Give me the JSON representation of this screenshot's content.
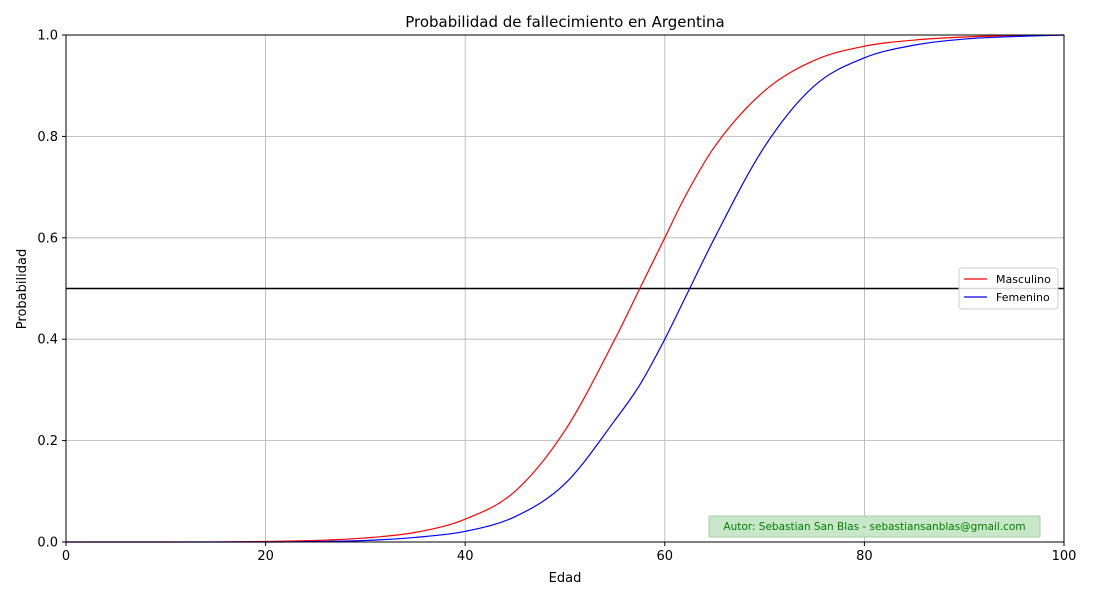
{
  "chart_data": {
    "type": "line",
    "title": "Probabilidad de fallecimiento en Argentina",
    "xlabel": "Edad",
    "ylabel": "Probabilidad",
    "xlim": [
      0,
      100
    ],
    "ylim": [
      0,
      1.0
    ],
    "xticks": [
      0,
      20,
      40,
      60,
      80,
      100
    ],
    "yticks": [
      0.0,
      0.2,
      0.4,
      0.6,
      0.8,
      1.0
    ],
    "xtick_labels": [
      "0",
      "20",
      "40",
      "60",
      "80",
      "100"
    ],
    "ytick_labels": [
      "0.0",
      "0.2",
      "0.4",
      "0.6",
      "0.8",
      "1.0"
    ],
    "grid": true,
    "legend_position": "center-right",
    "x": [
      0,
      10,
      20,
      25,
      30,
      35,
      40,
      45,
      50,
      55,
      57.5,
      60,
      62,
      65,
      70,
      75,
      80,
      85,
      90,
      95,
      100
    ],
    "series": [
      {
        "name": "Masculino",
        "color": "#ff0000",
        "values": [
          0.0,
          0.0,
          0.001,
          0.003,
          0.008,
          0.019,
          0.045,
          0.1,
          0.22,
          0.4,
          0.5,
          0.6,
          0.68,
          0.78,
          0.89,
          0.95,
          0.978,
          0.99,
          0.996,
          0.999,
          1.0
        ]
      },
      {
        "name": "Femenino",
        "color": "#0000ff",
        "values": [
          0.0,
          0.0,
          0.0,
          0.001,
          0.003,
          0.009,
          0.021,
          0.05,
          0.115,
          0.24,
          0.31,
          0.4,
          0.48,
          0.6,
          0.78,
          0.9,
          0.955,
          0.98,
          0.992,
          0.997,
          1.0
        ]
      }
    ],
    "hline": {
      "y": 0.5,
      "color": "#000000"
    },
    "annotation": {
      "text": "Autor: Sebastian San Blas - sebastiansanblas@gmail.com",
      "color": "#008000",
      "background": "#c8e6c8"
    }
  }
}
